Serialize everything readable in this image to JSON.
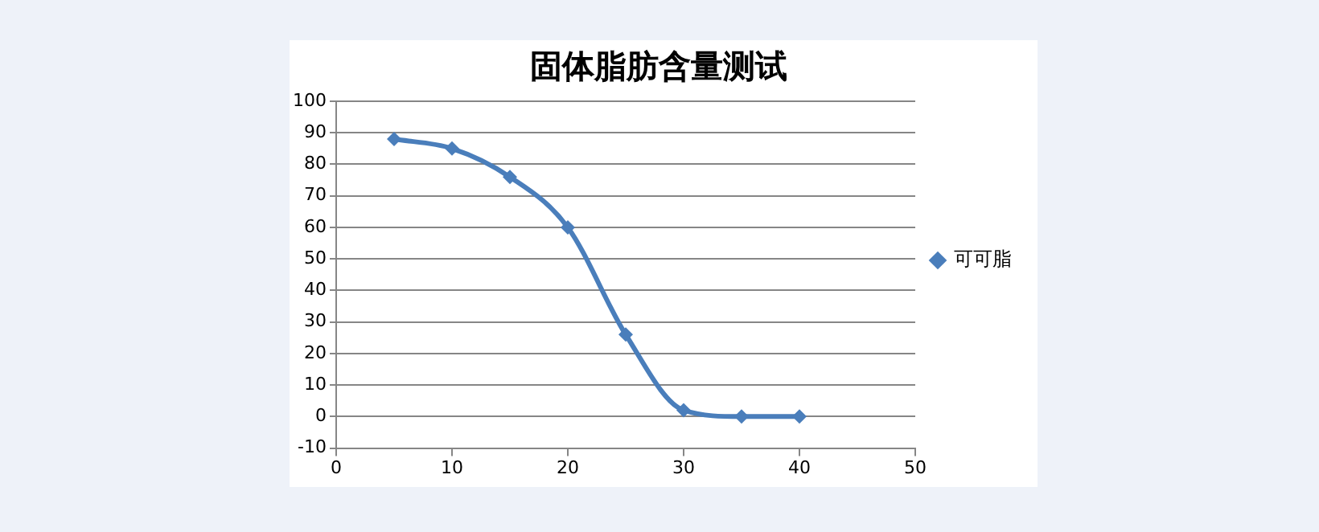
{
  "chart_data": {
    "type": "line",
    "title": "固体脂肪含量测试",
    "x": [
      5,
      10,
      15,
      20,
      25,
      30,
      35,
      40
    ],
    "series": [
      {
        "name": "可可脂",
        "color": "#4a7ebb",
        "values": [
          88,
          85,
          76,
          60,
          26,
          2,
          0,
          0
        ]
      }
    ],
    "xlim": [
      0,
      50
    ],
    "xticks": [
      0,
      10,
      20,
      30,
      40,
      50
    ],
    "ylim": [
      -10,
      100
    ],
    "yticks": [
      -10,
      0,
      10,
      20,
      30,
      40,
      50,
      60,
      70,
      80,
      90,
      100
    ],
    "grid": "y",
    "legend": "right",
    "marker": "diamond",
    "line_style": "solid"
  }
}
